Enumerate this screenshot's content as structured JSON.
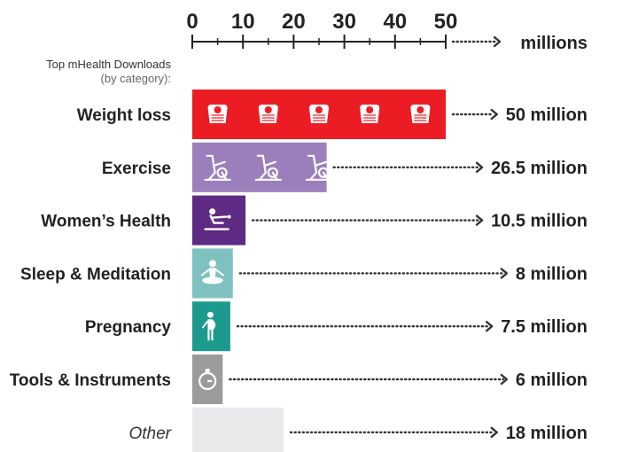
{
  "chart_data": {
    "type": "bar",
    "orientation": "horizontal",
    "subtitle_line1": "Top mHealth Downloads",
    "subtitle_line2": "(by category):",
    "unit_label": "millions",
    "xlim": [
      0,
      50
    ],
    "ticks": [
      0,
      10,
      20,
      30,
      40,
      50
    ],
    "categories": [
      "Weight loss",
      "Exercise",
      "Women’s Health",
      "Sleep & Meditation",
      "Pregnancy",
      "Tools & Instruments",
      "Other"
    ],
    "values": [
      50,
      26.5,
      10.5,
      8,
      7.5,
      6,
      18
    ],
    "value_labels": [
      "50 million",
      "26.5 million",
      "10.5 million",
      "8 million",
      "7.5 million",
      "6 million",
      "18 million"
    ],
    "colors": [
      "#ec1c24",
      "#9b7fbd",
      "#5e2a84",
      "#7fc1c1",
      "#1d9a8e",
      "#9b9b9b",
      "#e9e9ec"
    ],
    "icons": [
      "scale-icon",
      "exercise-bike-icon",
      "rowing-icon",
      "meditation-icon",
      "pregnant-woman-icon",
      "stopwatch-icon",
      "none"
    ],
    "grid": false,
    "legend": "none"
  }
}
